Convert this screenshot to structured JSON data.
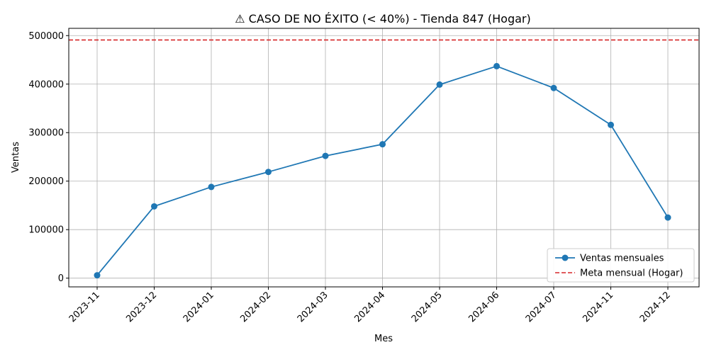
{
  "chart_data": {
    "type": "line",
    "title": "⚠ CASO DE NO ÉXITO (< 40%) - Tienda 847 (Hogar)",
    "xlabel": "Mes",
    "ylabel": "Ventas",
    "categories": [
      "2023-11",
      "2023-12",
      "2024-01",
      "2024-02",
      "2024-03",
      "2024-04",
      "2024-05",
      "2024-06",
      "2024-07",
      "2024-11",
      "2024-12"
    ],
    "series": [
      {
        "name": "Ventas mensuales",
        "color": "#1f77b4",
        "marker": "circle",
        "values": [
          6000,
          148000,
          188000,
          219000,
          252000,
          276000,
          399000,
          437000,
          392000,
          316000,
          125000
        ]
      }
    ],
    "reference_line": {
      "name": "Meta mensual (Hogar)",
      "value": 491000,
      "color": "#d62728",
      "style": "dashed"
    },
    "yticks": [
      0,
      100000,
      200000,
      300000,
      400000,
      500000
    ],
    "ylim": [
      -18000,
      515000
    ],
    "grid": true,
    "legend_position": "lower-right"
  }
}
